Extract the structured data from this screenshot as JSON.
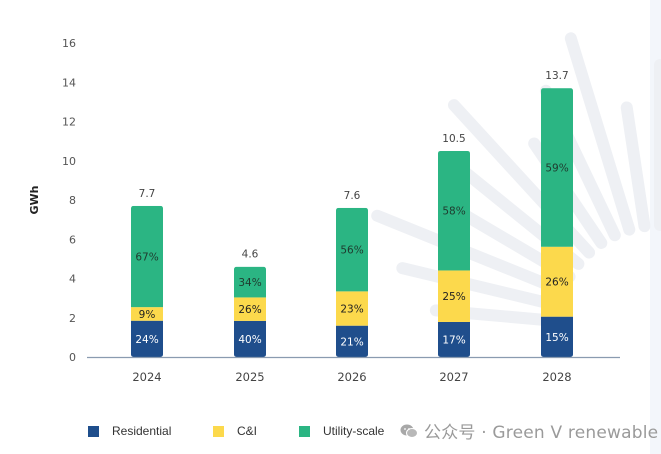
{
  "chart_data": {
    "type": "bar",
    "stacked": true,
    "title": "",
    "xlabel": "",
    "ylabel": "GWh",
    "ylim": [
      0,
      16
    ],
    "yticks": [
      0,
      2,
      4,
      6,
      8,
      10,
      12,
      14,
      16
    ],
    "grid": false,
    "legend_position": "bottom-left",
    "categories": [
      "2024",
      "2025",
      "2026",
      "2027",
      "2028"
    ],
    "totals": [
      7.7,
      4.6,
      7.6,
      10.5,
      13.7
    ],
    "total_labels": [
      "7.7",
      "4.6",
      "7.6",
      "10.5",
      "13.7"
    ],
    "series": [
      {
        "name": "Residential",
        "color": "#1f4e8c",
        "label_color": "#ffffff",
        "share_pct": [
          24,
          40,
          21,
          17,
          15
        ],
        "labels": [
          "24%",
          "40%",
          "21%",
          "17%",
          "15%"
        ]
      },
      {
        "name": "C&I",
        "color": "#fcd94c",
        "label_color": "#222222",
        "share_pct": [
          9,
          26,
          23,
          25,
          26
        ],
        "labels": [
          "9%",
          "26%",
          "23%",
          "25%",
          "26%"
        ]
      },
      {
        "name": "Utility-scale",
        "color": "#2bb583",
        "label_color": "#1f3a2e",
        "share_pct": [
          67,
          34,
          56,
          58,
          59
        ],
        "labels": [
          "67%",
          "34%",
          "56%",
          "58%",
          "59%"
        ]
      }
    ]
  },
  "legend": {
    "items": [
      {
        "label": "Residential",
        "color": "#1f4e8c"
      },
      {
        "label": "C&I",
        "color": "#fcd94c"
      },
      {
        "label": "Utility-scale",
        "color": "#2bb583"
      }
    ]
  },
  "watermark": {
    "icon": "wechat-icon",
    "text": "公众号 · Green V renewable"
  },
  "axis_color": "#8a9bb0"
}
